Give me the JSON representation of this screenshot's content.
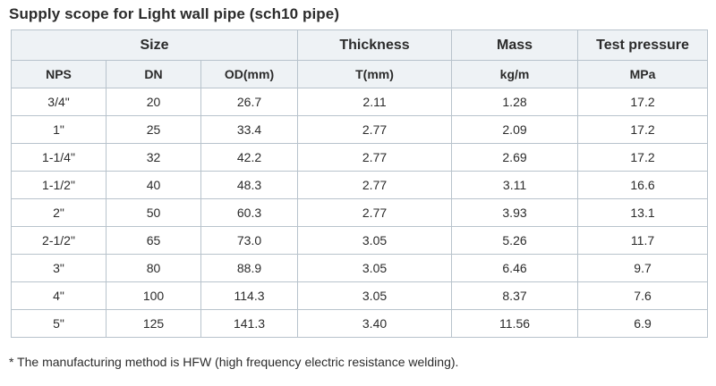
{
  "title": "Supply scope for Light wall pipe (sch10 pipe)",
  "header_groups": [
    "Size",
    "Thickness",
    "Mass",
    "Test pressure"
  ],
  "subheaders": [
    "NPS",
    "DN",
    "OD(mm)",
    "T(mm)",
    "kg/m",
    "MPa"
  ],
  "rows": [
    [
      "3/4\"",
      "20",
      "26.7",
      "2.11",
      "1.28",
      "17.2"
    ],
    [
      "1\"",
      "25",
      "33.4",
      "2.77",
      "2.09",
      "17.2"
    ],
    [
      "1-1/4\"",
      "32",
      "42.2",
      "2.77",
      "2.69",
      "17.2"
    ],
    [
      "1-1/2\"",
      "40",
      "48.3",
      "2.77",
      "3.11",
      "16.6"
    ],
    [
      "2\"",
      "50",
      "60.3",
      "2.77",
      "3.93",
      "13.1"
    ],
    [
      "2-1/2\"",
      "65",
      "73.0",
      "3.05",
      "5.26",
      "11.7"
    ],
    [
      "3\"",
      "80",
      "88.9",
      "3.05",
      "6.46",
      "9.7"
    ],
    [
      "4\"",
      "100",
      "114.3",
      "3.05",
      "8.37",
      "7.6"
    ],
    [
      "5\"",
      "125",
      "141.3",
      "3.40",
      "11.56",
      "6.9"
    ]
  ],
  "footnote": "* The manufacturing method is HFW (high frequency electric resistance welding).",
  "colors": {
    "header_bg": "#eef2f5",
    "border": "#b8c3cc",
    "text": "#2b2b2b"
  }
}
